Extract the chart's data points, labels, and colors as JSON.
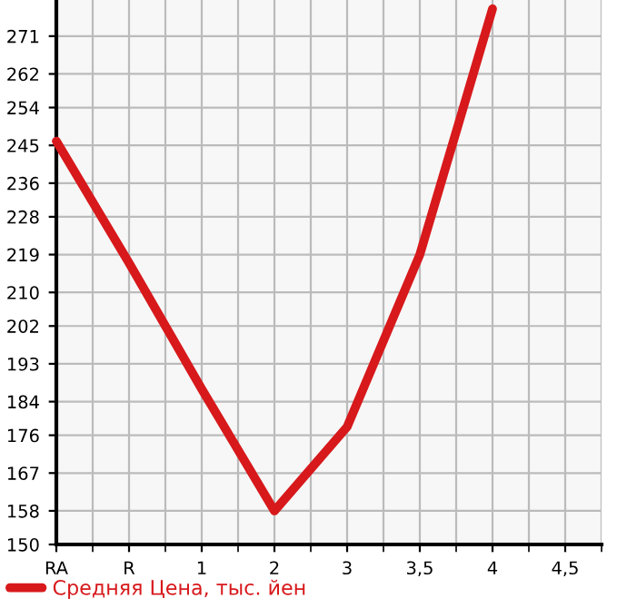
{
  "chart_data": {
    "type": "line",
    "categories": [
      "RA",
      "R",
      "1",
      "2",
      "3",
      "3,5",
      "4",
      "4,5"
    ],
    "series": [
      {
        "name": "Средняя Цена, тыс. йен",
        "color": "#d7191c",
        "values": [
          246,
          217,
          187,
          158,
          178,
          219,
          277.5,
          null
        ]
      }
    ],
    "ylim": [
      150,
      279.6
    ],
    "yticks": [
      150,
      158,
      167,
      176,
      184,
      193,
      202,
      210,
      219,
      228,
      236,
      245,
      254,
      262,
      271
    ],
    "grid": true,
    "legend": "bottom",
    "marker": "none",
    "line_style": "solid"
  }
}
